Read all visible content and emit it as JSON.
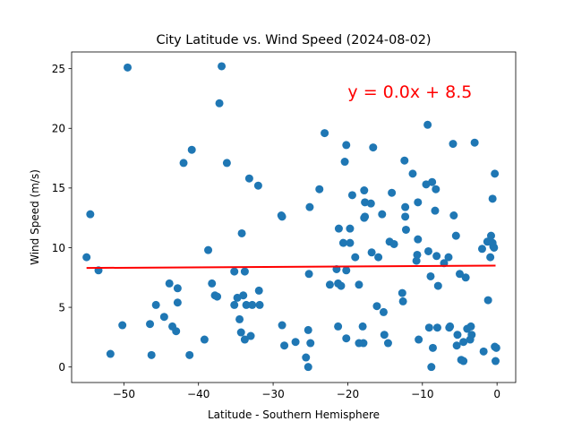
{
  "chart_data": {
    "type": "scatter",
    "title": "City Latitude vs. Wind Speed (2024-08-02)",
    "xlabel": "Latitude - Southern Hemisphere",
    "ylabel": "Wind Speed (m/s)",
    "xlim": [
      -57,
      2.5
    ],
    "ylim": [
      -1.3,
      26.4
    ],
    "x_ticks": [
      -50,
      -40,
      -30,
      -20,
      -10,
      0
    ],
    "x_tick_labels": [
      "−50",
      "−40",
      "−30",
      "−20",
      "−10",
      "0"
    ],
    "y_ticks": [
      0,
      5,
      10,
      15,
      20,
      25
    ],
    "y_tick_labels": [
      "0",
      "5",
      "10",
      "15",
      "20",
      "25"
    ],
    "grid": false,
    "legend": "none",
    "colors": {
      "points": "#1f77b4",
      "regression": "#ff0000",
      "annotation": "#ff0000"
    },
    "regression": {
      "slope": 0.0,
      "intercept": 8.5,
      "x_range": [
        -55.0,
        -0.2
      ],
      "y_start": 8.3,
      "y_end": 8.5
    },
    "annotation": {
      "text": "y = 0.0x + 8.5",
      "x": -20.0,
      "y": 23.1
    },
    "points": [
      [
        -55.0,
        9.2
      ],
      [
        -54.5,
        12.8
      ],
      [
        -53.4,
        8.1
      ],
      [
        -51.8,
        1.1
      ],
      [
        -50.2,
        3.5
      ],
      [
        -49.5,
        25.1
      ],
      [
        -46.5,
        3.6
      ],
      [
        -46.3,
        1.0
      ],
      [
        -45.7,
        5.2
      ],
      [
        -44.6,
        4.2
      ],
      [
        -43.9,
        7.0
      ],
      [
        -43.5,
        3.4
      ],
      [
        -43.0,
        3.0
      ],
      [
        -42.8,
        6.6
      ],
      [
        -42.8,
        5.4
      ],
      [
        -42.0,
        17.1
      ],
      [
        -41.2,
        1.0
      ],
      [
        -40.9,
        18.2
      ],
      [
        -39.2,
        2.3
      ],
      [
        -38.7,
        9.8
      ],
      [
        -38.2,
        7.0
      ],
      [
        -37.8,
        6.0
      ],
      [
        -37.5,
        5.9
      ],
      [
        -37.2,
        22.1
      ],
      [
        -36.9,
        25.2
      ],
      [
        -36.2,
        17.1
      ],
      [
        -35.2,
        8.0
      ],
      [
        -35.2,
        5.2
      ],
      [
        -34.8,
        5.8
      ],
      [
        -34.5,
        4.0
      ],
      [
        -34.3,
        2.9
      ],
      [
        -34.2,
        11.2
      ],
      [
        -34.0,
        6.0
      ],
      [
        -33.8,
        8.0
      ],
      [
        -33.8,
        2.3
      ],
      [
        -33.6,
        5.2
      ],
      [
        -33.2,
        15.8
      ],
      [
        -33.0,
        2.6
      ],
      [
        -32.8,
        5.2
      ],
      [
        -32.0,
        15.2
      ],
      [
        -31.9,
        6.4
      ],
      [
        -31.8,
        5.2
      ],
      [
        -28.9,
        12.7
      ],
      [
        -28.8,
        12.6
      ],
      [
        -28.8,
        3.5
      ],
      [
        -28.5,
        1.8
      ],
      [
        -27.0,
        2.1
      ],
      [
        -25.6,
        0.8
      ],
      [
        -25.3,
        0.0
      ],
      [
        -25.3,
        3.1
      ],
      [
        -25.2,
        7.8
      ],
      [
        -25.1,
        13.4
      ],
      [
        -25.0,
        2.0
      ],
      [
        -23.8,
        14.9
      ],
      [
        -23.1,
        19.6
      ],
      [
        -22.4,
        6.9
      ],
      [
        -21.5,
        8.2
      ],
      [
        -21.3,
        3.4
      ],
      [
        -21.3,
        7.0
      ],
      [
        -21.2,
        11.6
      ],
      [
        -20.9,
        6.8
      ],
      [
        -20.6,
        10.4
      ],
      [
        -20.4,
        17.2
      ],
      [
        -20.2,
        18.6
      ],
      [
        -20.2,
        2.4
      ],
      [
        -20.2,
        8.1
      ],
      [
        -19.7,
        11.6
      ],
      [
        -19.7,
        10.4
      ],
      [
        -19.4,
        14.4
      ],
      [
        -19.0,
        9.2
      ],
      [
        -18.5,
        6.9
      ],
      [
        -18.5,
        2.0
      ],
      [
        -18.0,
        3.4
      ],
      [
        -17.9,
        2.0
      ],
      [
        -17.8,
        14.8
      ],
      [
        -17.8,
        12.5
      ],
      [
        -17.7,
        12.6
      ],
      [
        -17.7,
        13.8
      ],
      [
        -16.9,
        13.7
      ],
      [
        -16.8,
        9.6
      ],
      [
        -16.6,
        18.4
      ],
      [
        -16.1,
        5.1
      ],
      [
        -15.9,
        9.2
      ],
      [
        -15.4,
        12.8
      ],
      [
        -15.2,
        4.6
      ],
      [
        -15.1,
        2.7
      ],
      [
        -14.6,
        2.0
      ],
      [
        -14.4,
        10.5
      ],
      [
        -14.1,
        14.6
      ],
      [
        -13.8,
        10.3
      ],
      [
        -12.7,
        6.2
      ],
      [
        -12.6,
        5.5
      ],
      [
        -12.4,
        17.3
      ],
      [
        -12.3,
        12.6
      ],
      [
        -12.3,
        13.4
      ],
      [
        -12.2,
        11.5
      ],
      [
        -11.3,
        16.2
      ],
      [
        -10.8,
        8.9
      ],
      [
        -10.7,
        9.4
      ],
      [
        -10.6,
        10.7
      ],
      [
        -10.6,
        13.8
      ],
      [
        -10.5,
        2.3
      ],
      [
        -9.5,
        15.3
      ],
      [
        -9.3,
        20.3
      ],
      [
        -9.2,
        9.7
      ],
      [
        -9.1,
        3.3
      ],
      [
        -8.9,
        7.6
      ],
      [
        -8.8,
        0.0
      ],
      [
        -8.7,
        15.5
      ],
      [
        -8.6,
        1.6
      ],
      [
        -8.3,
        13.1
      ],
      [
        -8.2,
        14.9
      ],
      [
        -8.1,
        9.3
      ],
      [
        -8.0,
        3.3
      ],
      [
        -7.9,
        6.8
      ],
      [
        -7.1,
        8.7
      ],
      [
        -6.5,
        9.2
      ],
      [
        -6.4,
        3.3
      ],
      [
        -6.3,
        3.4
      ],
      [
        -5.9,
        18.7
      ],
      [
        -5.8,
        12.7
      ],
      [
        -5.5,
        11.0
      ],
      [
        -5.4,
        1.8
      ],
      [
        -5.3,
        2.7
      ],
      [
        -5.0,
        7.8
      ],
      [
        -4.8,
        0.6
      ],
      [
        -4.5,
        0.5
      ],
      [
        -4.5,
        2.1
      ],
      [
        -4.2,
        7.5
      ],
      [
        -4.0,
        3.2
      ],
      [
        -3.6,
        2.3
      ],
      [
        -3.5,
        3.4
      ],
      [
        -3.4,
        2.7
      ],
      [
        -3.0,
        18.8
      ],
      [
        -2.0,
        9.9
      ],
      [
        -1.8,
        1.3
      ],
      [
        -1.3,
        10.5
      ],
      [
        -1.2,
        5.6
      ],
      [
        -0.9,
        9.2
      ],
      [
        -0.8,
        11.0
      ],
      [
        -0.6,
        14.1
      ],
      [
        -0.6,
        10.4
      ],
      [
        -0.5,
        10.1
      ],
      [
        -0.4,
        10.0
      ],
      [
        -0.3,
        16.2
      ],
      [
        -0.3,
        1.7
      ],
      [
        -0.2,
        0.5
      ],
      [
        -0.1,
        1.6
      ]
    ]
  }
}
